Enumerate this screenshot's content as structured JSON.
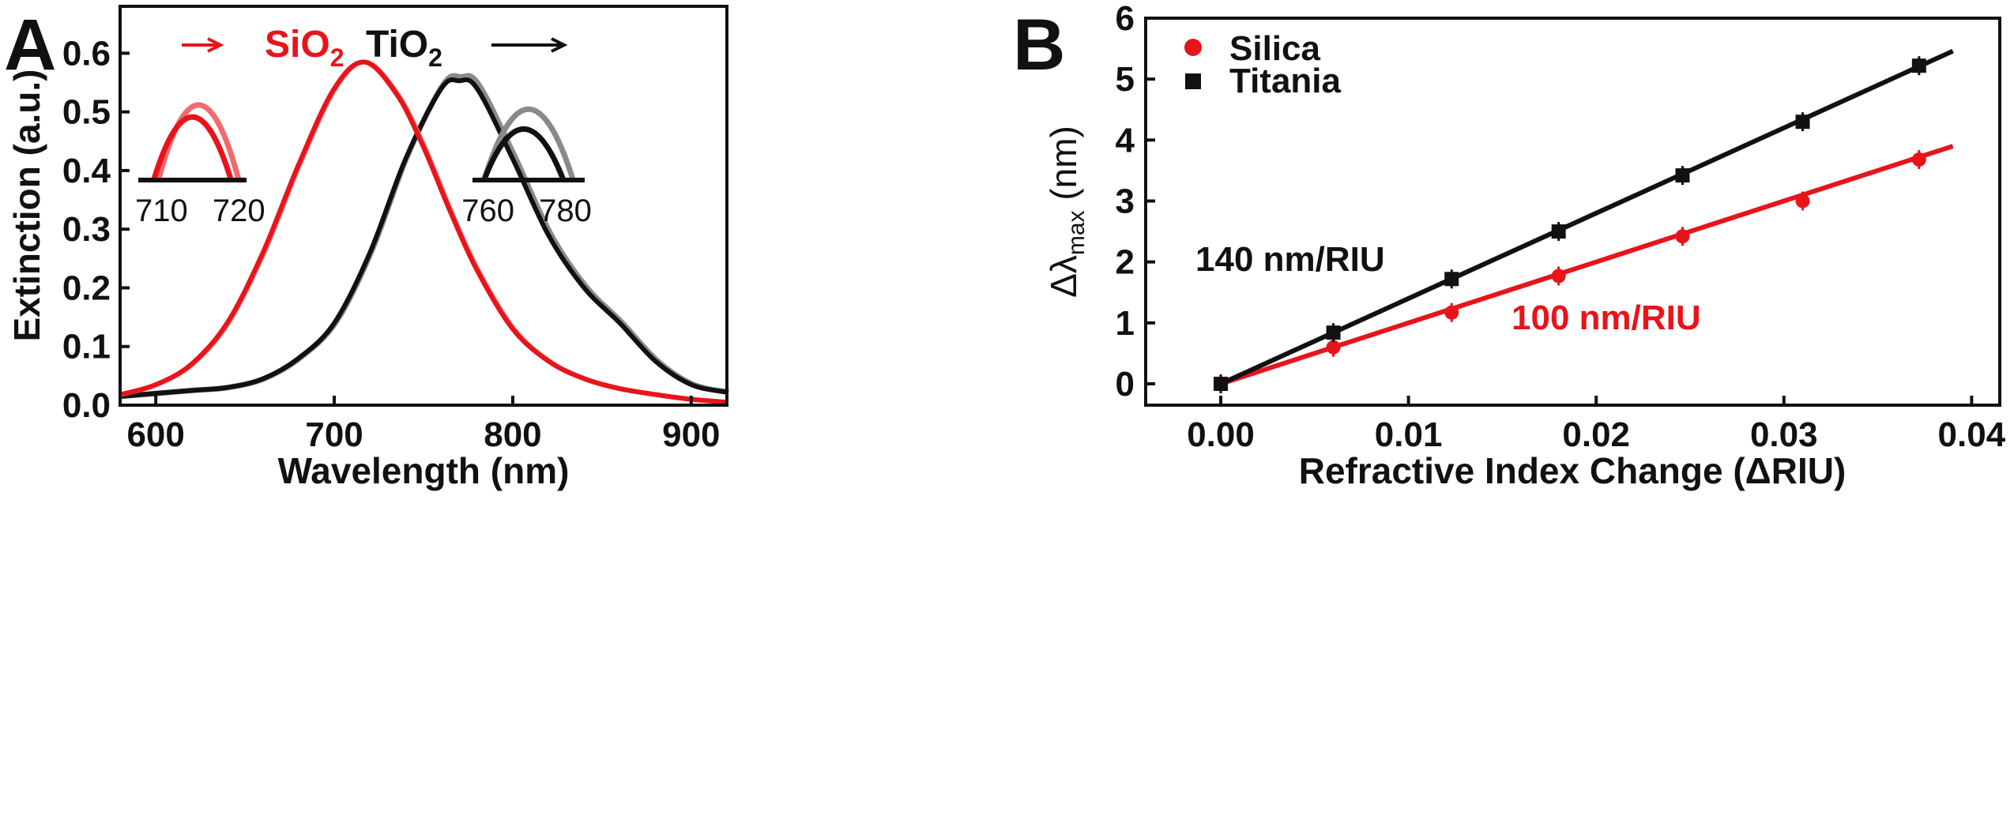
{
  "chart_data": [
    {
      "panel": "A",
      "type": "line",
      "title": "",
      "xlabel": "Wavelength (nm)",
      "ylabel": "Extinction (a.u.)",
      "xlim": [
        580,
        920
      ],
      "ylim": [
        0,
        0.68
      ],
      "xticks": [
        "600",
        "700",
        "800",
        "900"
      ],
      "yticks": [
        "0.0",
        "0.1",
        "0.2",
        "0.3",
        "0.4",
        "0.5",
        "0.6"
      ],
      "annotations": {
        "sio2": {
          "base": "SiO",
          "sub": "2",
          "color": "#e8141b"
        },
        "tio2": {
          "base": "TiO",
          "sub": "2",
          "color": "#111111"
        }
      },
      "series": [
        {
          "name": "SiO2 (initial)",
          "color": "#e8141b",
          "peak_nm": 717,
          "peak_ext": 0.585
        },
        {
          "name": "SiO2 (shifted)",
          "color": "#f06a70",
          "peak_nm": 718,
          "peak_ext": 0.584
        },
        {
          "name": "TiO2 (initial)",
          "color": "#111111",
          "peak_nm": 768,
          "peak_ext": 0.553
        },
        {
          "name": "TiO2 (shifted)",
          "color": "#8a8a8a",
          "peak_nm": 769,
          "peak_ext": 0.56
        }
      ],
      "curves": {
        "sio2": {
          "x": [
            580,
            600,
            620,
            640,
            660,
            680,
            700,
            717,
            735,
            750,
            765,
            780,
            800,
            820,
            840,
            860,
            880,
            900,
            920
          ],
          "y": [
            0.018,
            0.035,
            0.07,
            0.14,
            0.26,
            0.41,
            0.54,
            0.585,
            0.53,
            0.44,
            0.33,
            0.23,
            0.13,
            0.075,
            0.045,
            0.028,
            0.018,
            0.01,
            0.005
          ]
        },
        "tio2": {
          "x": [
            580,
            600,
            620,
            640,
            660,
            680,
            700,
            720,
            740,
            760,
            770,
            780,
            800,
            820,
            840,
            860,
            880,
            900,
            920
          ],
          "y": [
            0.015,
            0.02,
            0.025,
            0.03,
            0.045,
            0.08,
            0.14,
            0.26,
            0.42,
            0.54,
            0.553,
            0.54,
            0.42,
            0.29,
            0.2,
            0.14,
            0.075,
            0.035,
            0.022
          ]
        }
      },
      "insets": [
        {
          "name": "SiO2 inset",
          "xticks": [
            "710",
            "720"
          ],
          "xlim": [
            707,
            721
          ],
          "curves": [
            {
              "color": "#f06a70",
              "x0": 709.6,
              "x1": 720.0,
              "peak": 1.0
            },
            {
              "color": "#e8141b",
              "x0": 709.0,
              "x1": 719.0,
              "peak": 0.84
            }
          ],
          "arrow_color": "#e8141b"
        },
        {
          "name": "TiO2 inset",
          "xticks": [
            "760",
            "780"
          ],
          "xlim": [
            756,
            785
          ],
          "curves": [
            {
              "color": "#8a8a8a",
              "x0": 759.0,
              "x1": 782.0,
              "peak": 1.0
            },
            {
              "color": "#111111",
              "x0": 759.0,
              "x1": 779.5,
              "peak": 0.72
            }
          ],
          "arrow_color": "#111111"
        }
      ]
    },
    {
      "panel": "B",
      "type": "scatter",
      "title": "",
      "xlabel": "Refractive Index Change (ΔRIU)",
      "ylabel": {
        "base": "Δλ",
        "sub": "max",
        "unit": " (nm)"
      },
      "xlim": [
        -0.004,
        0.0415
      ],
      "ylim": [
        -0.35,
        6.0
      ],
      "xticks": [
        "0.00",
        "0.01",
        "0.02",
        "0.03",
        "0.04"
      ],
      "yticks": [
        "0",
        "1",
        "2",
        "3",
        "4",
        "5",
        "6"
      ],
      "x": [
        0.0,
        0.006,
        0.0123,
        0.018,
        0.0246,
        0.031,
        0.0372
      ],
      "series": [
        {
          "name": "Silica",
          "marker": "circle",
          "color": "#e8141b",
          "values": [
            0.0,
            0.6,
            1.17,
            1.77,
            2.42,
            3.0,
            3.68
          ],
          "fit": {
            "slope": 100,
            "x_end": 0.039
          },
          "fit_label": "100 nm/RIU"
        },
        {
          "name": "Titania",
          "marker": "square",
          "color": "#111111",
          "values": [
            0.0,
            0.84,
            1.72,
            2.5,
            3.42,
            4.3,
            5.22
          ],
          "fit": {
            "slope": 140,
            "x_end": 0.039
          },
          "fit_label": "140 nm/RIU"
        }
      ],
      "legend": {
        "position": "top-left",
        "items": [
          "Silica",
          "Titania"
        ]
      }
    }
  ],
  "panel_labels": [
    "A",
    "B"
  ]
}
